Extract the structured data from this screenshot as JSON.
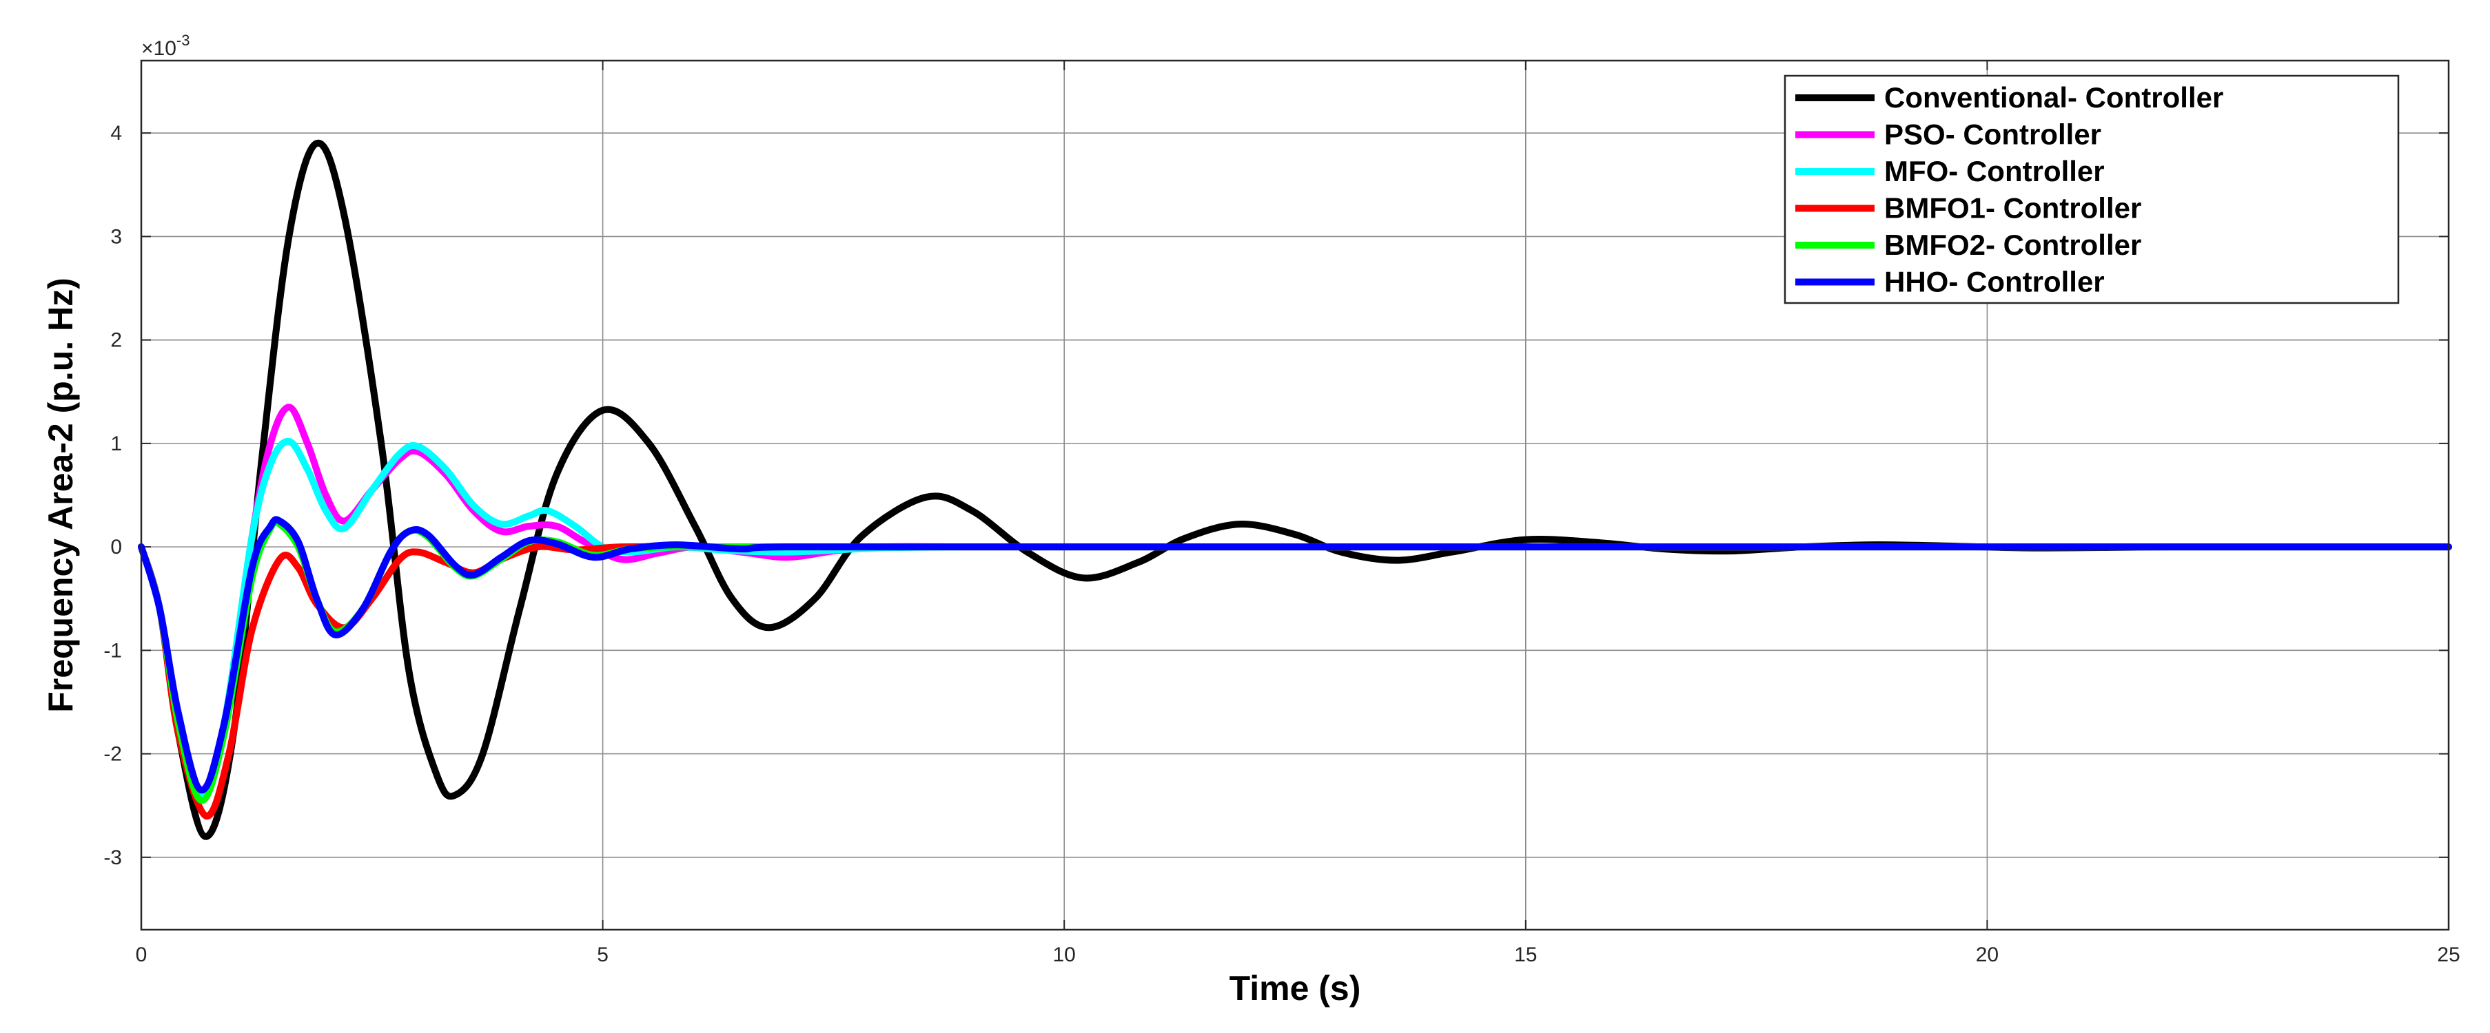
{
  "chart_data": {
    "type": "line",
    "title": "",
    "xlabel": "Time (s)",
    "ylabel": "Frequency Area-2 (p.u. Hz)",
    "y_multiplier": "×10",
    "y_multiplier_exp": "-3",
    "xlim": [
      0,
      25
    ],
    "ylim": [
      -3.7,
      4.7
    ],
    "x_ticks": [
      0,
      5,
      10,
      15,
      20,
      25
    ],
    "y_ticks": [
      -3,
      -2,
      -1,
      0,
      1,
      2,
      3,
      4
    ],
    "grid": true,
    "legend_position": "top-right",
    "series": [
      {
        "name": "Conventional- Controller",
        "color": "#000000",
        "points": [
          [
            0,
            0
          ],
          [
            0.2,
            -0.6
          ],
          [
            0.4,
            -1.8
          ],
          [
            0.7,
            -2.8
          ],
          [
            1.0,
            -1.8
          ],
          [
            1.3,
            0.8
          ],
          [
            1.6,
            3.0
          ],
          [
            1.9,
            3.9
          ],
          [
            2.2,
            3.2
          ],
          [
            2.6,
            1.0
          ],
          [
            2.9,
            -1.2
          ],
          [
            3.2,
            -2.2
          ],
          [
            3.4,
            -2.4
          ],
          [
            3.7,
            -2.0
          ],
          [
            4.1,
            -0.6
          ],
          [
            4.5,
            0.7
          ],
          [
            5.0,
            1.32
          ],
          [
            5.5,
            1.0
          ],
          [
            6.0,
            0.2
          ],
          [
            6.4,
            -0.5
          ],
          [
            6.8,
            -0.78
          ],
          [
            7.3,
            -0.5
          ],
          [
            7.8,
            0.1
          ],
          [
            8.5,
            0.48
          ],
          [
            9.0,
            0.35
          ],
          [
            9.6,
            -0.05
          ],
          [
            10.2,
            -0.3
          ],
          [
            10.8,
            -0.15
          ],
          [
            11.3,
            0.08
          ],
          [
            11.9,
            0.22
          ],
          [
            12.5,
            0.12
          ],
          [
            13.0,
            -0.05
          ],
          [
            13.6,
            -0.13
          ],
          [
            14.2,
            -0.05
          ],
          [
            15.0,
            0.07
          ],
          [
            15.8,
            0.04
          ],
          [
            16.5,
            -0.02
          ],
          [
            17.2,
            -0.04
          ],
          [
            18.0,
            0.0
          ],
          [
            18.8,
            0.02
          ],
          [
            19.5,
            0.01
          ],
          [
            20.5,
            -0.01
          ],
          [
            22,
            0.0
          ],
          [
            23.5,
            0.0
          ],
          [
            25,
            0.0
          ]
        ]
      },
      {
        "name": "PSO- Controller",
        "color": "#ff00ff",
        "points": [
          [
            0,
            0
          ],
          [
            0.2,
            -0.6
          ],
          [
            0.4,
            -1.7
          ],
          [
            0.65,
            -2.35
          ],
          [
            0.9,
            -1.7
          ],
          [
            1.2,
            0.1
          ],
          [
            1.4,
            1.0
          ],
          [
            1.6,
            1.35
          ],
          [
            1.8,
            1.0
          ],
          [
            2.0,
            0.5
          ],
          [
            2.2,
            0.25
          ],
          [
            2.5,
            0.55
          ],
          [
            2.8,
            0.85
          ],
          [
            3.0,
            0.92
          ],
          [
            3.3,
            0.7
          ],
          [
            3.6,
            0.35
          ],
          [
            3.9,
            0.15
          ],
          [
            4.2,
            0.2
          ],
          [
            4.5,
            0.2
          ],
          [
            4.8,
            0.05
          ],
          [
            5.2,
            -0.12
          ],
          [
            5.6,
            -0.06
          ],
          [
            6.0,
            0.0
          ],
          [
            6.5,
            -0.05
          ],
          [
            7.0,
            -0.1
          ],
          [
            7.5,
            -0.04
          ],
          [
            8.0,
            0.0
          ],
          [
            9.0,
            0.0
          ],
          [
            10,
            0.0
          ],
          [
            12,
            0.0
          ],
          [
            15,
            0.0
          ],
          [
            20,
            0.0
          ],
          [
            25,
            0.0
          ]
        ]
      },
      {
        "name": "MFO- Controller",
        "color": "#00ffff",
        "points": [
          [
            0,
            0
          ],
          [
            0.2,
            -0.6
          ],
          [
            0.4,
            -1.7
          ],
          [
            0.65,
            -2.4
          ],
          [
            0.9,
            -1.7
          ],
          [
            1.2,
            0.1
          ],
          [
            1.4,
            0.8
          ],
          [
            1.6,
            1.02
          ],
          [
            1.8,
            0.75
          ],
          [
            2.0,
            0.35
          ],
          [
            2.2,
            0.18
          ],
          [
            2.5,
            0.55
          ],
          [
            2.8,
            0.9
          ],
          [
            3.0,
            0.97
          ],
          [
            3.3,
            0.75
          ],
          [
            3.6,
            0.4
          ],
          [
            3.9,
            0.22
          ],
          [
            4.2,
            0.3
          ],
          [
            4.4,
            0.35
          ],
          [
            4.7,
            0.2
          ],
          [
            5.0,
            0.0
          ],
          [
            5.3,
            -0.05
          ],
          [
            5.8,
            0.0
          ],
          [
            6.3,
            -0.03
          ],
          [
            7.0,
            -0.05
          ],
          [
            8.0,
            -0.01
          ],
          [
            9.0,
            0.0
          ],
          [
            10,
            0.0
          ],
          [
            12,
            0.0
          ],
          [
            15,
            0.0
          ],
          [
            20,
            0.0
          ],
          [
            25,
            0.0
          ]
        ]
      },
      {
        "name": "BMFO1- Controller",
        "color": "#ff0000",
        "points": [
          [
            0,
            0
          ],
          [
            0.2,
            -0.6
          ],
          [
            0.4,
            -1.8
          ],
          [
            0.7,
            -2.6
          ],
          [
            0.95,
            -2.0
          ],
          [
            1.2,
            -0.8
          ],
          [
            1.5,
            -0.12
          ],
          [
            1.7,
            -0.2
          ],
          [
            1.9,
            -0.55
          ],
          [
            2.2,
            -0.78
          ],
          [
            2.5,
            -0.5
          ],
          [
            2.8,
            -0.12
          ],
          [
            3.0,
            -0.05
          ],
          [
            3.3,
            -0.15
          ],
          [
            3.6,
            -0.25
          ],
          [
            3.9,
            -0.12
          ],
          [
            4.3,
            0.0
          ],
          [
            4.7,
            -0.03
          ],
          [
            5.2,
            0.0
          ],
          [
            6.0,
            0.0
          ],
          [
            7.0,
            0.0
          ],
          [
            10,
            0.0
          ],
          [
            15,
            0.0
          ],
          [
            20,
            0.0
          ],
          [
            25,
            0.0
          ]
        ]
      },
      {
        "name": "BMFO2- Controller",
        "color": "#00ff00",
        "points": [
          [
            0,
            0
          ],
          [
            0.2,
            -0.6
          ],
          [
            0.4,
            -1.7
          ],
          [
            0.65,
            -2.45
          ],
          [
            0.9,
            -1.8
          ],
          [
            1.2,
            -0.3
          ],
          [
            1.4,
            0.18
          ],
          [
            1.5,
            0.22
          ],
          [
            1.7,
            0.0
          ],
          [
            1.9,
            -0.5
          ],
          [
            2.1,
            -0.82
          ],
          [
            2.4,
            -0.6
          ],
          [
            2.7,
            -0.05
          ],
          [
            2.9,
            0.15
          ],
          [
            3.1,
            0.1
          ],
          [
            3.4,
            -0.2
          ],
          [
            3.6,
            -0.28
          ],
          [
            3.9,
            -0.12
          ],
          [
            4.2,
            0.05
          ],
          [
            4.5,
            0.05
          ],
          [
            4.9,
            -0.08
          ],
          [
            5.3,
            -0.02
          ],
          [
            5.8,
            0.0
          ],
          [
            7.0,
            0.0
          ],
          [
            10,
            0.0
          ],
          [
            15,
            0.0
          ],
          [
            20,
            0.0
          ],
          [
            25,
            0.0
          ]
        ]
      },
      {
        "name": "HHO- Controller",
        "color": "#0000ff",
        "points": [
          [
            0,
            0
          ],
          [
            0.2,
            -0.6
          ],
          [
            0.4,
            -1.6
          ],
          [
            0.65,
            -2.35
          ],
          [
            0.9,
            -1.7
          ],
          [
            1.2,
            -0.2
          ],
          [
            1.4,
            0.2
          ],
          [
            1.5,
            0.25
          ],
          [
            1.7,
            0.05
          ],
          [
            1.9,
            -0.5
          ],
          [
            2.1,
            -0.85
          ],
          [
            2.4,
            -0.6
          ],
          [
            2.7,
            -0.05
          ],
          [
            2.9,
            0.15
          ],
          [
            3.1,
            0.12
          ],
          [
            3.4,
            -0.18
          ],
          [
            3.6,
            -0.27
          ],
          [
            3.9,
            -0.1
          ],
          [
            4.2,
            0.06
          ],
          [
            4.5,
            0.03
          ],
          [
            4.9,
            -0.1
          ],
          [
            5.3,
            -0.02
          ],
          [
            5.8,
            0.02
          ],
          [
            6.5,
            -0.02
          ],
          [
            7.0,
            0.0
          ],
          [
            10,
            0.0
          ],
          [
            15,
            0.0
          ],
          [
            20,
            0.0
          ],
          [
            25,
            0.0
          ]
        ]
      }
    ]
  }
}
